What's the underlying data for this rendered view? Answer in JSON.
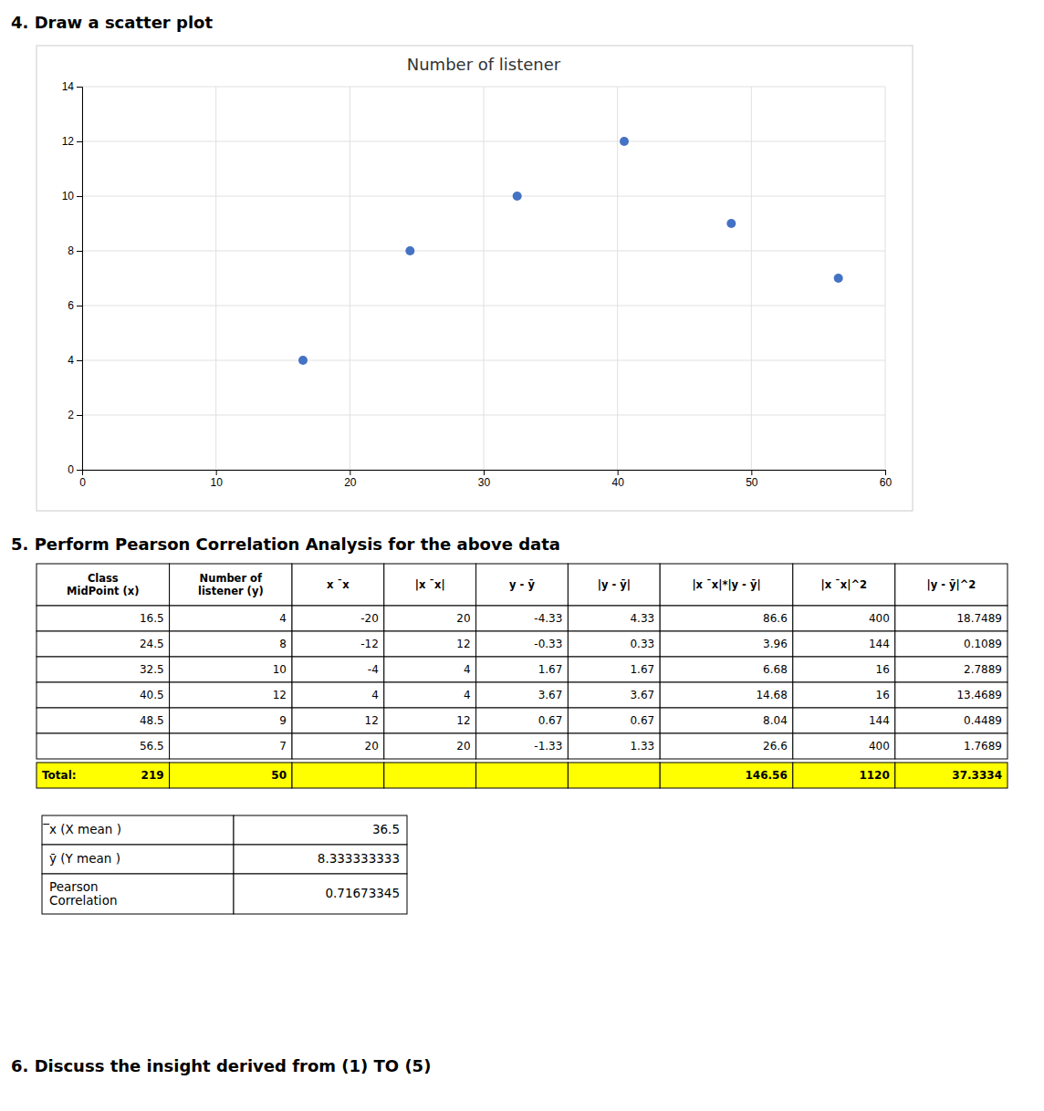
{
  "chart_data": {
    "type": "scatter",
    "title": "Number of listener",
    "x": [
      16.5,
      24.5,
      32.5,
      40.5,
      48.5,
      56.5
    ],
    "values": [
      4,
      8,
      10,
      12,
      9,
      7
    ],
    "color": "#4472C4",
    "xlim": [
      0,
      60
    ],
    "ylim": [
      0,
      14
    ],
    "xticks": [
      0,
      10,
      20,
      30,
      40,
      50,
      60
    ],
    "yticks": [
      0,
      2,
      4,
      6,
      8,
      10,
      12,
      14
    ],
    "grid": true
  },
  "sections": [
    "4.   Draw a scatter plot",
    "5.   Perform Pearson Correlation Analysis for the above data",
    "6.   Discuss the insight derived from (1) TO (5)"
  ],
  "table": {
    "columns": [
      "Class\nMidPoint (x)",
      "Number of\nlistener (y)",
      "x ¯x",
      "|x ¯x|",
      "y - ȳ",
      "|y - ȳ|",
      "|x ¯x|*|y - ȳ|",
      "|x ¯x|^2",
      "|y - ȳ|^2"
    ],
    "rows": [
      [
        "16.5",
        "4",
        "-20",
        "20",
        "-4.33",
        "4.33",
        "86.6",
        "400",
        "18.7489"
      ],
      [
        "24.5",
        "8",
        "-12",
        "12",
        "-0.33",
        "0.33",
        "3.96",
        "144",
        "0.1089"
      ],
      [
        "32.5",
        "10",
        "-4",
        "4",
        "1.67",
        "1.67",
        "6.68",
        "16",
        "2.7889"
      ],
      [
        "40.5",
        "12",
        "4",
        "4",
        "3.67",
        "3.67",
        "14.68",
        "16",
        "13.4689"
      ],
      [
        "48.5",
        "9",
        "12",
        "12",
        "0.67",
        "0.67",
        "8.04",
        "144",
        "0.4489"
      ],
      [
        "56.5",
        "7",
        "20",
        "20",
        "-1.33",
        "1.33",
        "26.6",
        "400",
        "1.7689"
      ]
    ],
    "total_label": "Total:",
    "total_row": [
      "219",
      "50",
      null,
      null,
      null,
      null,
      "146.56",
      "1120",
      "37.3334"
    ],
    "total_color": "#FFFF00"
  },
  "stats": {
    "rows": [
      [
        "̅x (X mean )",
        "36.5"
      ],
      [
        "ȳ (Y mean )",
        "8.333333333"
      ],
      [
        "Pearson\nCorrelation",
        "0.71673345"
      ]
    ]
  }
}
